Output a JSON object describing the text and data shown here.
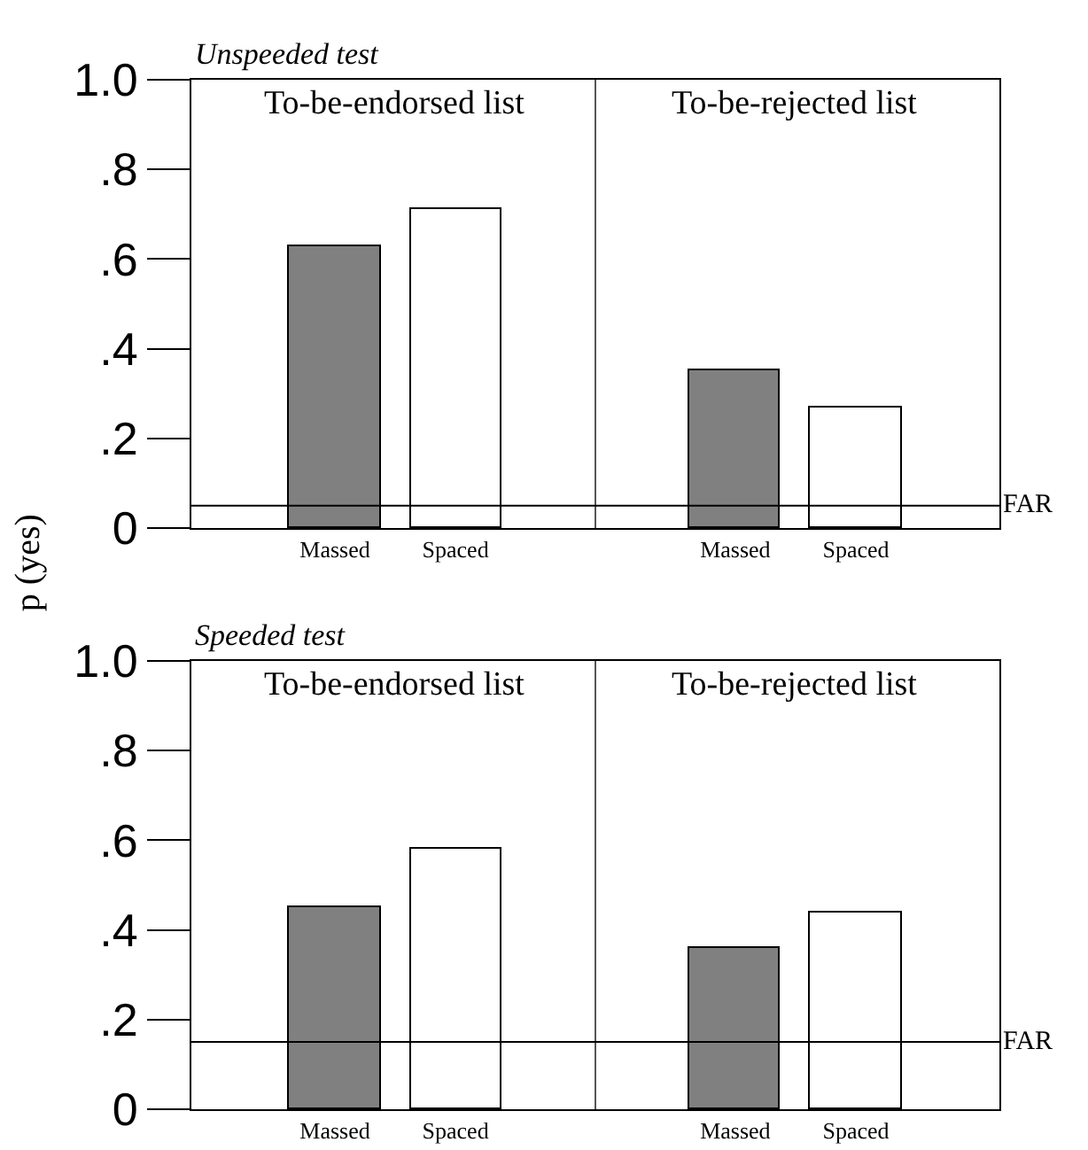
{
  "chart_data": [
    {
      "type": "bar",
      "title": "Unspeeded test",
      "ylabel": "p (yes)",
      "categories": [
        "Massed",
        "Spaced",
        "Massed",
        "Spaced"
      ],
      "values": [
        0.63,
        0.71,
        0.35,
        0.27
      ],
      "colors": [
        "#808080",
        "#ffffff",
        "#808080",
        "#ffffff"
      ],
      "annotations": [
        "To-be-endorsed list",
        "To-be-rejected list"
      ],
      "ylim": [
        0,
        1.0
      ],
      "yticks": [
        {
          "value": 0,
          "label": "0"
        },
        {
          "value": 0.2,
          "label": ".2"
        },
        {
          "value": 0.4,
          "label": ".4"
        },
        {
          "value": 0.6,
          "label": ".6"
        },
        {
          "value": 0.8,
          "label": ".8"
        },
        {
          "value": 1.0,
          "label": "1.0"
        }
      ],
      "ref_lines": [
        {
          "axis": "y",
          "value": 0.05,
          "label": "FAR"
        }
      ]
    },
    {
      "type": "bar",
      "title": "Speeded test",
      "categories": [
        "Massed",
        "Spaced",
        "Massed",
        "Spaced"
      ],
      "values": [
        0.45,
        0.58,
        0.36,
        0.44
      ],
      "colors": [
        "#808080",
        "#ffffff",
        "#808080",
        "#ffffff"
      ],
      "annotations": [
        "To-be-endorsed list",
        "To-be-rejected list"
      ],
      "ylim": [
        0,
        1.0
      ],
      "yticks": [
        {
          "value": 0,
          "label": "0"
        },
        {
          "value": 0.2,
          "label": ".2"
        },
        {
          "value": 0.4,
          "label": ".4"
        },
        {
          "value": 0.6,
          "label": ".6"
        },
        {
          "value": 0.8,
          "label": ".8"
        },
        {
          "value": 1.0,
          "label": "1.0"
        }
      ],
      "ref_lines": [
        {
          "axis": "y",
          "value": 0.15,
          "label": "FAR"
        }
      ]
    }
  ]
}
